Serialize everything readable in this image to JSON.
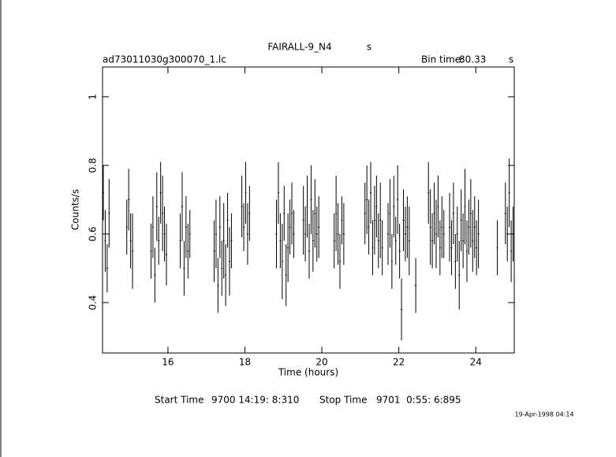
{
  "chart_data": {
    "type": "errorbar",
    "title": "FAIRALL-9_N4",
    "title_unit": "s",
    "file_name": "ad73011030g300070_1.lc",
    "bin_time_label": "Bin time:",
    "bin_time": "80.33",
    "bin_time_unit": "s",
    "x_label": "Time (hours)",
    "y_label": "Counts/s",
    "start_label": "Start Time",
    "start_time": "9700 14:19: 8:310",
    "stop_label": "Stop Time",
    "stop_time": "9701  0:55: 6:895",
    "date_stamp": "19-Apr-1998 04:14",
    "color": "#000000",
    "xlim": [
      14.3,
      25.0
    ],
    "ylim": [
      0.253,
      1.087
    ],
    "xticks": [
      16,
      18,
      20,
      22,
      24
    ],
    "yticks": [
      0.4,
      0.6,
      0.8,
      1
    ],
    "x": [
      14.32,
      14.37,
      14.42,
      14.47,
      14.93,
      14.98,
      15.03,
      15.08,
      15.56,
      15.61,
      15.66,
      15.71,
      15.76,
      15.81,
      15.86,
      15.91,
      15.96,
      16.32,
      16.37,
      16.42,
      16.47,
      16.52,
      16.57,
      17.2,
      17.25,
      17.3,
      17.35,
      17.4,
      17.45,
      17.5,
      17.55,
      17.6,
      17.65,
      17.92,
      17.97,
      18.02,
      18.07,
      18.12,
      18.82,
      18.87,
      18.92,
      18.97,
      19.02,
      19.07,
      19.12,
      19.17,
      19.22,
      19.27,
      19.52,
      19.57,
      19.62,
      19.67,
      19.72,
      19.77,
      19.82,
      19.87,
      19.92,
      20.32,
      20.37,
      20.42,
      20.47,
      20.52,
      20.57,
      21.12,
      21.17,
      21.22,
      21.27,
      21.32,
      21.37,
      21.42,
      21.47,
      21.52,
      21.57,
      21.72,
      21.77,
      21.82,
      21.87,
      21.92,
      21.97,
      22.02,
      22.07,
      22.12,
      22.17,
      22.22,
      22.27,
      22.44,
      22.77,
      22.82,
      22.87,
      22.92,
      22.97,
      23.02,
      23.07,
      23.12,
      23.17,
      23.32,
      23.37,
      23.42,
      23.47,
      23.52,
      23.57,
      23.62,
      23.67,
      23.72,
      23.77,
      23.82,
      23.87,
      23.92,
      23.97,
      24.02,
      24.07,
      24.56,
      24.77,
      24.82,
      24.87,
      24.92,
      24.97
    ],
    "values": [
      0.72,
      0.58,
      0.5,
      0.66,
      0.62,
      0.7,
      0.58,
      0.55,
      0.55,
      0.62,
      0.48,
      0.68,
      0.58,
      0.72,
      0.66,
      0.6,
      0.54,
      0.58,
      0.68,
      0.5,
      0.62,
      0.55,
      0.6,
      0.55,
      0.6,
      0.45,
      0.62,
      0.5,
      0.58,
      0.48,
      0.64,
      0.52,
      0.58,
      0.68,
      0.62,
      0.72,
      0.6,
      0.66,
      0.6,
      0.72,
      0.58,
      0.52,
      0.66,
      0.48,
      0.56,
      0.62,
      0.66,
      0.6,
      0.64,
      0.6,
      0.68,
      0.55,
      0.7,
      0.58,
      0.66,
      0.6,
      0.62,
      0.58,
      0.66,
      0.6,
      0.52,
      0.64,
      0.6,
      0.66,
      0.7,
      0.62,
      0.72,
      0.56,
      0.64,
      0.68,
      0.58,
      0.64,
      0.56,
      0.6,
      0.66,
      0.52,
      0.68,
      0.58,
      0.7,
      0.55,
      0.38,
      0.64,
      0.6,
      0.62,
      0.58,
      0.45,
      0.72,
      0.62,
      0.58,
      0.66,
      0.6,
      0.68,
      0.56,
      0.62,
      0.6,
      0.62,
      0.56,
      0.66,
      0.52,
      0.6,
      0.48,
      0.64,
      0.58,
      0.68,
      0.55,
      0.62,
      0.66,
      0.58,
      0.62,
      0.56,
      0.6,
      0.56,
      0.66,
      0.6,
      0.72,
      0.55,
      0.6
    ],
    "errors": [
      0.08,
      0.09,
      0.07,
      0.1,
      0.08,
      0.09,
      0.08,
      0.11,
      0.08,
      0.09,
      0.08,
      0.1,
      0.07,
      0.09,
      0.11,
      0.08,
      0.09,
      0.08,
      0.1,
      0.08,
      0.09,
      0.08,
      0.07,
      0.09,
      0.1,
      0.08,
      0.09,
      0.08,
      0.11,
      0.09,
      0.08,
      0.1,
      0.08,
      0.09,
      0.07,
      0.09,
      0.09,
      0.08,
      0.1,
      0.09,
      0.08,
      0.11,
      0.08,
      0.09,
      0.1,
      0.08,
      0.09,
      0.07,
      0.1,
      0.08,
      0.09,
      0.08,
      0.1,
      0.09,
      0.1,
      0.08,
      0.09,
      0.08,
      0.11,
      0.09,
      0.08,
      0.07,
      0.09,
      0.09,
      0.1,
      0.08,
      0.09,
      0.08,
      0.1,
      0.09,
      0.08,
      0.11,
      0.08,
      0.09,
      0.1,
      0.08,
      0.09,
      0.07,
      0.1,
      0.08,
      0.09,
      0.09,
      0.08,
      0.09,
      0.1,
      0.08,
      0.09,
      0.11,
      0.08,
      0.09,
      0.1,
      0.09,
      0.08,
      0.09,
      0.07,
      0.1,
      0.08,
      0.09,
      0.08,
      0.08,
      0.1,
      0.09,
      0.08,
      0.11,
      0.09,
      0.08,
      0.1,
      0.09,
      0.09,
      0.08,
      0.1,
      0.08,
      0.09,
      0.08,
      0.1,
      0.09,
      0.08
    ]
  }
}
